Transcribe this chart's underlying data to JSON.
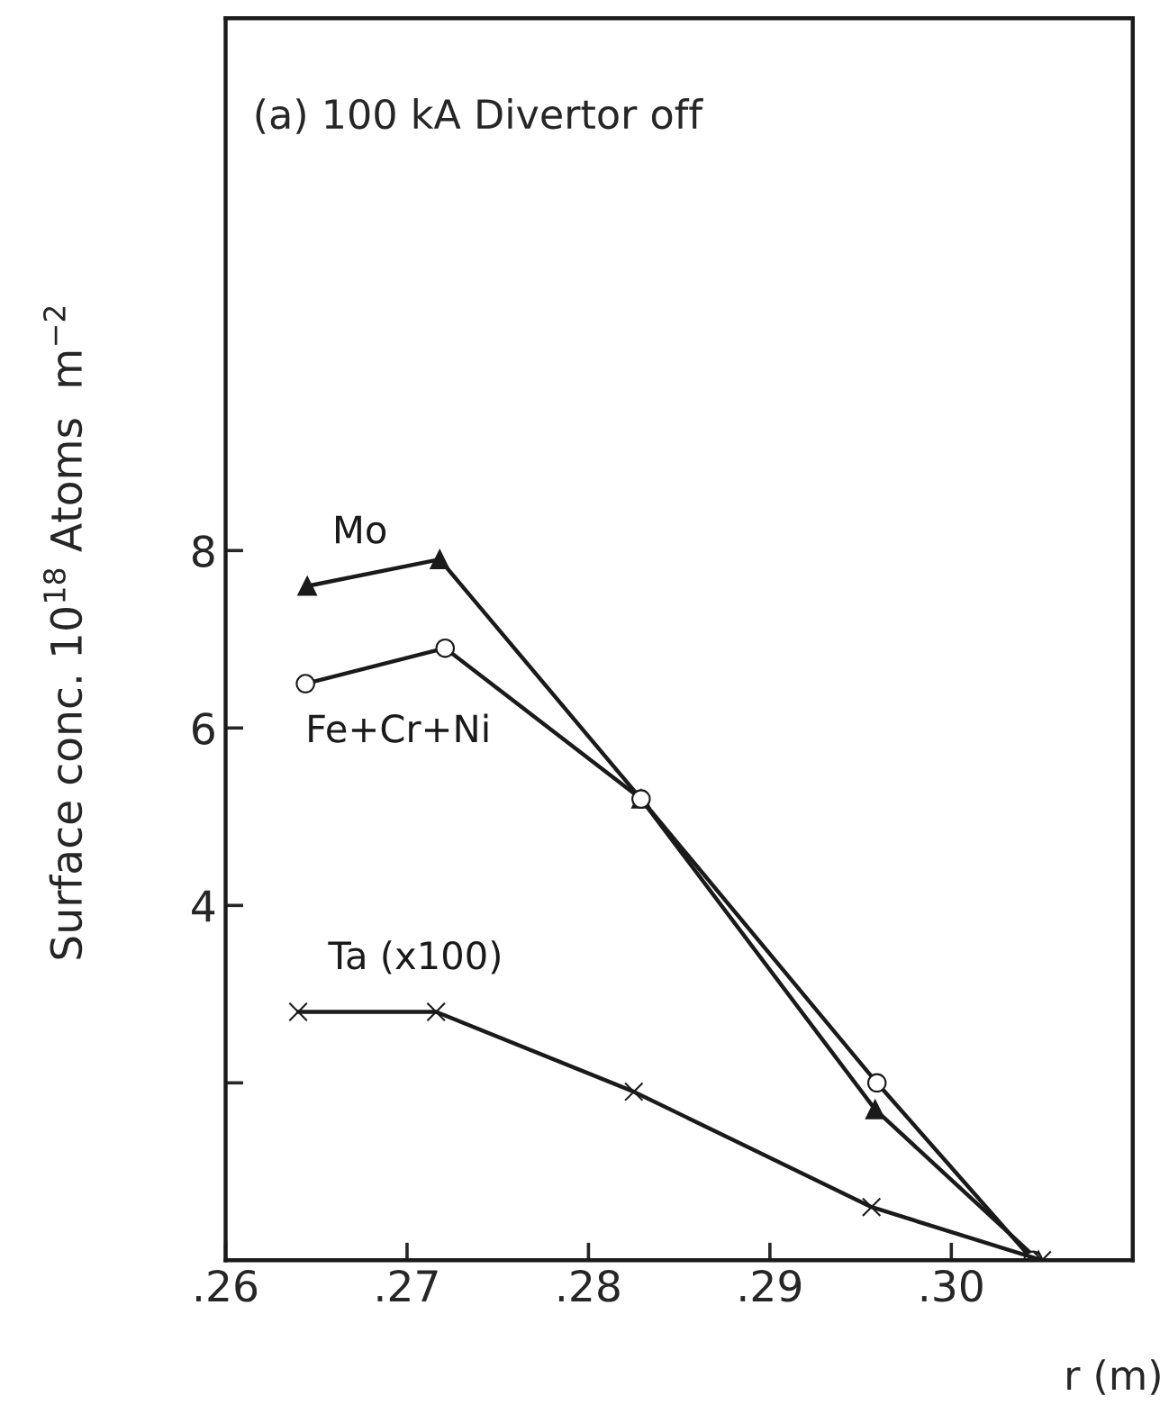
{
  "chart_data": {
    "type": "line",
    "title": "(a) 100 kA Divertor off",
    "xlabel": "r (m)",
    "ylabel": "Surface conc. 10$^{18}$ Atoms  m$^{−2}$",
    "series": [
      {
        "name": "Mo",
        "color": "#1a1a1a",
        "marker": "triangle",
        "x": [
          0.2645,
          0.2718,
          0.2829,
          0.2958,
          0.3048
        ],
        "values": [
          7.6,
          7.9,
          5.2,
          1.7,
          0
        ]
      },
      {
        "name": "Fe+Cr+Ni",
        "color": "#1a1a1a",
        "marker": "circle",
        "x": [
          0.2644,
          0.2721,
          0.2829,
          0.2959,
          0.3045
        ],
        "values": [
          6.5,
          6.9,
          5.2,
          2.0,
          0
        ]
      },
      {
        "name": "Ta (x100)",
        "color": "#1a1a1a",
        "marker": "cross",
        "x": [
          0.264,
          0.2716,
          0.2825,
          0.2956,
          0.305
        ],
        "values": [
          2.8,
          2.8,
          1.9,
          0.6,
          0
        ]
      }
    ],
    "xlim": [
      0.26,
      0.31
    ],
    "ylim": [
      0,
      14
    ],
    "xticks": [
      {
        "value": 0.26,
        "label": ".26"
      },
      {
        "value": 0.27,
        "label": ".27"
      },
      {
        "value": 0.28,
        "label": ".28"
      },
      {
        "value": 0.29,
        "label": ".29"
      },
      {
        "value": 0.3,
        "label": ".30"
      }
    ],
    "yticks": [
      {
        "value": 2,
        "label": null
      },
      4,
      6,
      8
    ],
    "grid": false,
    "legend": false,
    "line_style": "solid"
  }
}
